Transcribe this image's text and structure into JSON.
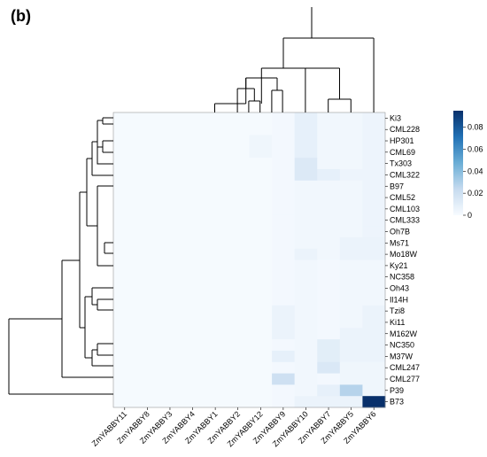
{
  "panel_label": "(b)",
  "chart_data": {
    "type": "heatmap",
    "title": "",
    "xlabel": "",
    "ylabel": "",
    "columns": [
      "ZmYABBY11",
      "ZmYABBY8",
      "ZmYABBY3",
      "ZmYABBY4",
      "ZmYABBY1",
      "ZmYABBY2",
      "ZmYABBY12",
      "ZmYABBY9",
      "ZmYABBY10",
      "ZmYABBY7",
      "ZmYABBY5",
      "ZmYABBY6"
    ],
    "rows": [
      "Ki3",
      "CML228",
      "HP301",
      "CML69",
      "Tx303",
      "CML322",
      "B97",
      "CML52",
      "CML103",
      "CML333",
      "Oh7B",
      "Ms71",
      "Mo18W",
      "Ky21",
      "NC358",
      "Oh43",
      "Il14H",
      "Tzi8",
      "Ki11",
      "M162W",
      "NC350",
      "M37W",
      "CML247",
      "CML277",
      "P39",
      "B73"
    ],
    "values": [
      [
        0.001,
        0.001,
        0.001,
        0.001,
        0.001,
        0.001,
        0.001,
        0.002,
        0.008,
        0.003,
        0.003,
        0.005
      ],
      [
        0.001,
        0.001,
        0.001,
        0.001,
        0.001,
        0.001,
        0.001,
        0.002,
        0.008,
        0.003,
        0.003,
        0.005
      ],
      [
        0.001,
        0.001,
        0.001,
        0.001,
        0.001,
        0.001,
        0.004,
        0.002,
        0.008,
        0.003,
        0.003,
        0.005
      ],
      [
        0.001,
        0.001,
        0.001,
        0.001,
        0.001,
        0.001,
        0.004,
        0.002,
        0.008,
        0.003,
        0.003,
        0.005
      ],
      [
        0.001,
        0.001,
        0.001,
        0.001,
        0.001,
        0.001,
        0.001,
        0.002,
        0.013,
        0.003,
        0.003,
        0.005
      ],
      [
        0.001,
        0.001,
        0.001,
        0.001,
        0.001,
        0.001,
        0.001,
        0.002,
        0.013,
        0.008,
        0.005,
        0.005
      ],
      [
        0.001,
        0.001,
        0.001,
        0.001,
        0.001,
        0.001,
        0.001,
        0.002,
        0.003,
        0.003,
        0.003,
        0.005
      ],
      [
        0.001,
        0.001,
        0.001,
        0.001,
        0.001,
        0.001,
        0.001,
        0.002,
        0.003,
        0.003,
        0.003,
        0.005
      ],
      [
        0.001,
        0.001,
        0.001,
        0.001,
        0.001,
        0.001,
        0.001,
        0.002,
        0.003,
        0.003,
        0.003,
        0.005
      ],
      [
        0.001,
        0.001,
        0.001,
        0.001,
        0.001,
        0.001,
        0.001,
        0.002,
        0.003,
        0.003,
        0.003,
        0.005
      ],
      [
        0.001,
        0.001,
        0.001,
        0.001,
        0.001,
        0.001,
        0.001,
        0.002,
        0.003,
        0.003,
        0.003,
        0.005
      ],
      [
        0.001,
        0.001,
        0.001,
        0.001,
        0.001,
        0.001,
        0.001,
        0.002,
        0.003,
        0.003,
        0.006,
        0.006
      ],
      [
        0.001,
        0.001,
        0.001,
        0.001,
        0.001,
        0.001,
        0.001,
        0.002,
        0.006,
        0.003,
        0.006,
        0.006
      ],
      [
        0.001,
        0.001,
        0.001,
        0.001,
        0.001,
        0.001,
        0.001,
        0.002,
        0.003,
        0.002,
        0.003,
        0.003
      ],
      [
        0.001,
        0.001,
        0.001,
        0.001,
        0.001,
        0.001,
        0.001,
        0.002,
        0.003,
        0.002,
        0.003,
        0.003
      ],
      [
        0.001,
        0.001,
        0.001,
        0.001,
        0.001,
        0.001,
        0.001,
        0.002,
        0.003,
        0.002,
        0.003,
        0.003
      ],
      [
        0.001,
        0.001,
        0.001,
        0.001,
        0.001,
        0.001,
        0.001,
        0.002,
        0.003,
        0.002,
        0.003,
        0.003
      ],
      [
        0.001,
        0.001,
        0.001,
        0.001,
        0.001,
        0.001,
        0.001,
        0.006,
        0.003,
        0.002,
        0.003,
        0.006
      ],
      [
        0.001,
        0.001,
        0.001,
        0.001,
        0.001,
        0.001,
        0.001,
        0.006,
        0.003,
        0.002,
        0.003,
        0.006
      ],
      [
        0.001,
        0.001,
        0.001,
        0.001,
        0.001,
        0.001,
        0.001,
        0.006,
        0.003,
        0.002,
        0.006,
        0.006
      ],
      [
        0.001,
        0.001,
        0.001,
        0.001,
        0.001,
        0.001,
        0.001,
        0.002,
        0.003,
        0.01,
        0.006,
        0.006
      ],
      [
        0.001,
        0.001,
        0.001,
        0.001,
        0.001,
        0.001,
        0.001,
        0.008,
        0.003,
        0.01,
        0.006,
        0.006
      ],
      [
        0.001,
        0.001,
        0.001,
        0.001,
        0.001,
        0.001,
        0.001,
        0.002,
        0.003,
        0.014,
        0.004,
        0.004
      ],
      [
        0.001,
        0.001,
        0.001,
        0.001,
        0.001,
        0.001,
        0.001,
        0.02,
        0.003,
        0.002,
        0.004,
        0.004
      ],
      [
        0.001,
        0.001,
        0.001,
        0.001,
        0.001,
        0.001,
        0.001,
        0.002,
        0.003,
        0.008,
        0.028,
        0.004
      ],
      [
        0.001,
        0.001,
        0.001,
        0.001,
        0.001,
        0.001,
        0.001,
        0.002,
        0.006,
        0.006,
        0.006,
        0.095
      ]
    ],
    "colorbar": {
      "min": 0,
      "max": 0.095,
      "ticks": [
        0,
        0.02,
        0.04,
        0.06,
        0.08
      ],
      "tick_labels": [
        "0",
        "0.02",
        "0.04",
        "0.06",
        "0.08"
      ],
      "colors": [
        "#f7fbff",
        "#08306b"
      ]
    },
    "grid": false,
    "dendrograms": [
      "top",
      "left"
    ]
  }
}
